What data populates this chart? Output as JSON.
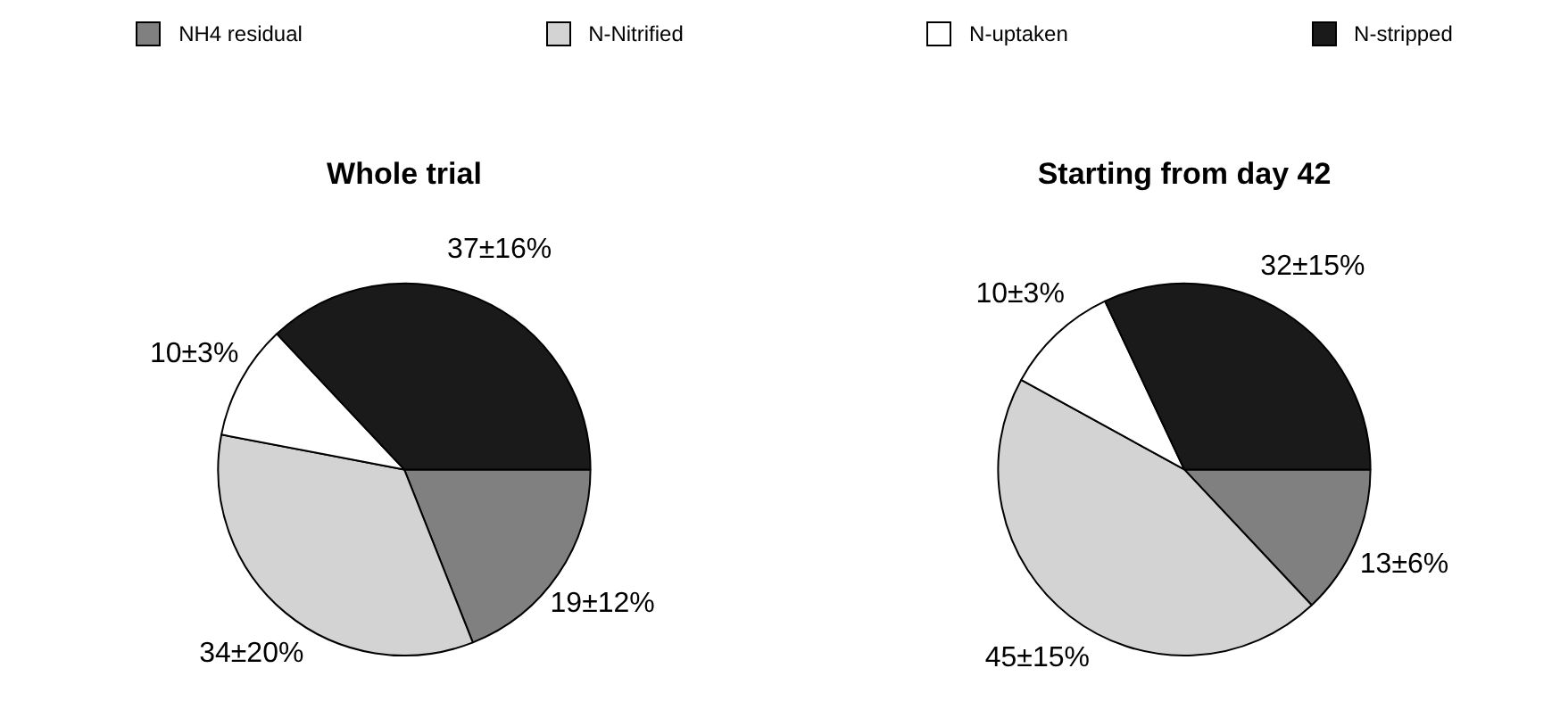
{
  "chart_data": [
    {
      "type": "pie",
      "title": "Whole trial",
      "categories": [
        "NH4 residual",
        "N-Nitrified",
        "N-uptaken",
        "N-stripped"
      ],
      "values": [
        19,
        34,
        10,
        37
      ],
      "value_labels": [
        "19±12%",
        "34±20%",
        "10±3%",
        "37±16%"
      ],
      "colors": [
        "#808080",
        "#d3d3d3",
        "#ffffff",
        "#1a1a1a"
      ],
      "legend": "top"
    },
    {
      "type": "pie",
      "title": "Starting from day 42",
      "categories": [
        null,
        null,
        null,
        null
      ],
      "values": [
        13,
        45,
        10,
        32
      ],
      "value_labels": [
        "13±6%",
        "45±15%",
        "10±3%",
        "32±15%"
      ],
      "colors": [
        "#808080",
        "#d3d3d3",
        "#ffffff",
        "#1a1a1a"
      ]
    }
  ]
}
